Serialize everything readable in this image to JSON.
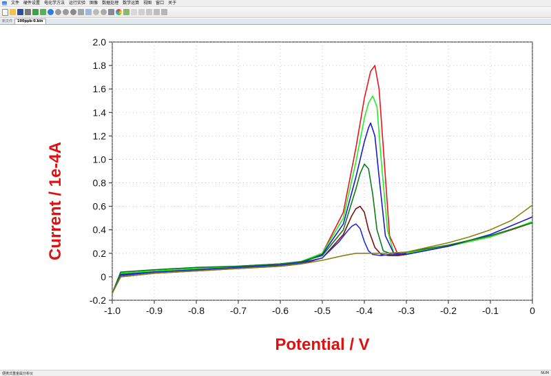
{
  "menubar": {
    "items": [
      "文件",
      "硬件设置",
      "电化学方法",
      "运行实验",
      "图像",
      "数据处理",
      "数学运算",
      "视图",
      "窗口",
      "关于"
    ]
  },
  "toolbar": {
    "icons": [
      "new-file-icon",
      "open-folder-icon",
      "save-icon",
      "print-icon",
      "settings-icon",
      "grid-icon",
      "run-icon",
      "pause-icon",
      "stop-icon",
      "refresh-icon",
      "export-icon",
      "chart-icon",
      "zoom-in-icon",
      "zoom-out-icon",
      "table-icon",
      "palette-icon",
      "image-icon",
      "check-icon",
      "cursor-icon",
      "line-icon",
      "peak-icon",
      "axis-icon"
    ]
  },
  "tabs": [
    {
      "label": "新文件",
      "active": false
    },
    {
      "label": "100ppb-0.bin",
      "active": true
    }
  ],
  "status": {
    "left": "便携式重金属分析仪",
    "right": "NUM"
  },
  "colors": {
    "red": "#e8141c",
    "green": "#22ee22",
    "blue": "#1a1ac8",
    "darkgreen": "#0b7a1a",
    "maroon": "#7a1010",
    "navy": "#1f2fd8",
    "olive": "#8a7f10",
    "labelred": "#e01010"
  },
  "chart_data": {
    "type": "line",
    "xlabel": "Potential / V",
    "ylabel": "Current / 1e-4A",
    "xlim": [
      -1.0,
      0.0
    ],
    "ylim": [
      -0.2,
      2.0
    ],
    "xticks": [
      "-1.0",
      "-0.9",
      "-0.8",
      "-0.7",
      "-0.6",
      "-0.5",
      "-0.4",
      "-0.3",
      "-0.2",
      "-0.1",
      "0"
    ],
    "yticks": [
      "-0.2",
      "0",
      "0.2",
      "0.4",
      "0.6",
      "0.8",
      "1.0",
      "1.2",
      "1.4",
      "1.6",
      "1.8",
      "2.0"
    ],
    "grid": true,
    "series": [
      {
        "color": "#e8141c",
        "x": [
          -1.0,
          -0.98,
          -0.9,
          -0.8,
          -0.7,
          -0.6,
          -0.55,
          -0.5,
          -0.45,
          -0.42,
          -0.4,
          -0.385,
          -0.375,
          -0.365,
          -0.355,
          -0.34,
          -0.32,
          -0.3,
          -0.2,
          -0.1,
          0.0
        ],
        "y": [
          -0.14,
          0.03,
          0.05,
          0.07,
          0.09,
          0.11,
          0.13,
          0.2,
          0.55,
          1.1,
          1.52,
          1.75,
          1.8,
          1.6,
          1.1,
          0.35,
          0.19,
          0.2,
          0.26,
          0.34,
          0.46
        ]
      },
      {
        "color": "#22ee22",
        "x": [
          -1.0,
          -0.98,
          -0.9,
          -0.8,
          -0.7,
          -0.6,
          -0.55,
          -0.5,
          -0.45,
          -0.42,
          -0.4,
          -0.39,
          -0.38,
          -0.37,
          -0.36,
          -0.345,
          -0.33,
          -0.3,
          -0.2,
          -0.1,
          0.0
        ],
        "y": [
          -0.14,
          0.03,
          0.05,
          0.07,
          0.09,
          0.11,
          0.13,
          0.2,
          0.5,
          0.98,
          1.35,
          1.48,
          1.54,
          1.45,
          1.0,
          0.4,
          0.2,
          0.2,
          0.26,
          0.34,
          0.47
        ]
      },
      {
        "color": "#1a1ac8",
        "x": [
          -1.0,
          -0.98,
          -0.9,
          -0.8,
          -0.7,
          -0.6,
          -0.55,
          -0.5,
          -0.45,
          -0.42,
          -0.4,
          -0.39,
          -0.385,
          -0.375,
          -0.365,
          -0.35,
          -0.33,
          -0.3,
          -0.2,
          -0.1,
          0.0
        ],
        "y": [
          -0.14,
          0.02,
          0.04,
          0.06,
          0.08,
          0.1,
          0.12,
          0.19,
          0.45,
          0.85,
          1.15,
          1.27,
          1.31,
          1.2,
          0.85,
          0.35,
          0.2,
          0.19,
          0.26,
          0.36,
          0.51
        ]
      },
      {
        "color": "#0b7a1a",
        "x": [
          -1.0,
          -0.98,
          -0.9,
          -0.8,
          -0.7,
          -0.6,
          -0.55,
          -0.5,
          -0.45,
          -0.42,
          -0.41,
          -0.4,
          -0.39,
          -0.38,
          -0.37,
          -0.355,
          -0.34,
          -0.3,
          -0.2,
          -0.1,
          0.0
        ],
        "y": [
          -0.14,
          0.04,
          0.06,
          0.08,
          0.09,
          0.11,
          0.13,
          0.18,
          0.4,
          0.75,
          0.88,
          0.96,
          0.92,
          0.7,
          0.4,
          0.22,
          0.2,
          0.21,
          0.27,
          0.35,
          0.46
        ]
      },
      {
        "color": "#7a1010",
        "x": [
          -1.0,
          -0.98,
          -0.9,
          -0.8,
          -0.7,
          -0.6,
          -0.55,
          -0.5,
          -0.45,
          -0.43,
          -0.42,
          -0.41,
          -0.4,
          -0.39,
          -0.375,
          -0.36,
          -0.34,
          -0.32,
          -0.3
        ],
        "y": [
          -0.14,
          0.0,
          0.03,
          0.05,
          0.07,
          0.09,
          0.11,
          0.16,
          0.36,
          0.52,
          0.58,
          0.6,
          0.55,
          0.4,
          0.25,
          0.19,
          0.18,
          0.18,
          0.19
        ]
      },
      {
        "color": "#1f2fd8",
        "x": [
          -1.0,
          -0.98,
          -0.9,
          -0.8,
          -0.7,
          -0.6,
          -0.55,
          -0.5,
          -0.46,
          -0.44,
          -0.43,
          -0.42,
          -0.41,
          -0.4,
          -0.39,
          -0.38,
          -0.36,
          -0.34,
          -0.32,
          -0.3
        ],
        "y": [
          -0.14,
          0.01,
          0.04,
          0.06,
          0.08,
          0.1,
          0.12,
          0.16,
          0.3,
          0.39,
          0.43,
          0.45,
          0.41,
          0.3,
          0.22,
          0.19,
          0.18,
          0.19,
          0.19,
          0.2
        ]
      },
      {
        "color": "#8a7f10",
        "x": [
          -1.0,
          -0.98,
          -0.9,
          -0.8,
          -0.7,
          -0.6,
          -0.55,
          -0.5,
          -0.45,
          -0.42,
          -0.4,
          -0.38,
          -0.35,
          -0.3,
          -0.25,
          -0.2,
          -0.15,
          -0.1,
          -0.05,
          0.0
        ],
        "y": [
          -0.14,
          0.0,
          0.03,
          0.05,
          0.07,
          0.09,
          0.11,
          0.14,
          0.18,
          0.2,
          0.2,
          0.2,
          0.2,
          0.21,
          0.25,
          0.29,
          0.34,
          0.4,
          0.48,
          0.61
        ]
      }
    ]
  }
}
